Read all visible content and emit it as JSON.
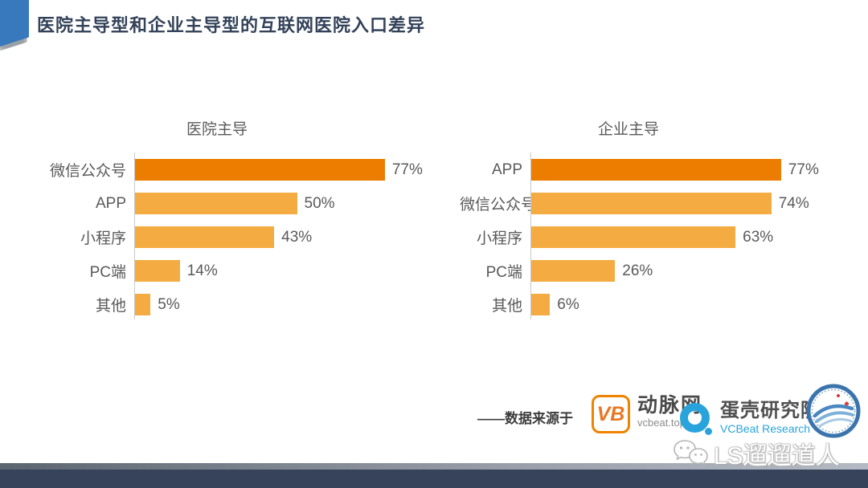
{
  "header": {
    "title": "医院主导型和企业主导型的互联网医院入口差异"
  },
  "chart_data": [
    {
      "type": "bar",
      "orientation": "horizontal",
      "title": "医院主导",
      "categories": [
        "微信公众号",
        "APP",
        "小程序",
        "PC端",
        "其他"
      ],
      "values": [
        77,
        50,
        43,
        14,
        5
      ],
      "value_suffix": "%",
      "xlim": [
        0,
        100
      ],
      "grid": false,
      "highlight_first_bar": true
    },
    {
      "type": "bar",
      "orientation": "horizontal",
      "title": "企业主导",
      "categories": [
        "APP",
        "微信公众号",
        "小程序",
        "PC端",
        "其他"
      ],
      "values": [
        77,
        74,
        63,
        26,
        6
      ],
      "value_suffix": "%",
      "xlim": [
        0,
        100
      ],
      "grid": false,
      "highlight_first_bar": true
    }
  ],
  "footer": {
    "source_label": "——数据来源于"
  },
  "logos": {
    "vcbeat": {
      "monogram": "VB",
      "name": "动脉网",
      "domain": "vcbeat.top"
    },
    "eggshell": {
      "name": "蛋壳研究院",
      "subtitle": "VCBeat Research"
    }
  },
  "watermark": {
    "text": "LS遛遛道人"
  },
  "colors": {
    "bar_highlight": "#ED7D00",
    "bar_normal": "#F4AC42",
    "title_navy": "#334259",
    "accent_blue": "#3779BC",
    "footer_navy": "#36435B",
    "axis_gray": "#C9C9C9",
    "label_gray": "#595959",
    "vb_orange": "#F08300",
    "eggshell_blue": "#29A3DC"
  }
}
